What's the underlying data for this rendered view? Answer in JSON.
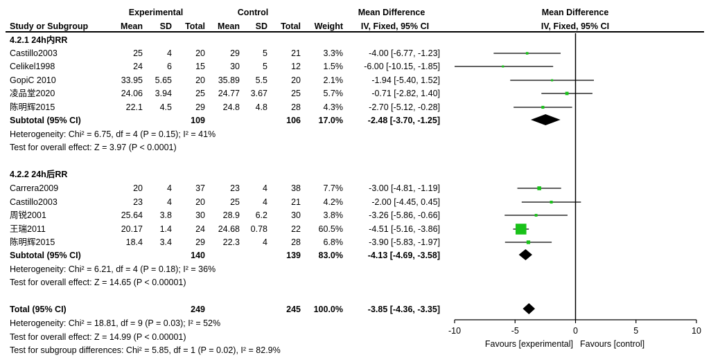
{
  "header": {
    "group_experimental": "Experimental",
    "group_control": "Control",
    "mean_difference": "Mean Difference",
    "mean_difference_plot": "Mean Difference",
    "study": "Study or Subgroup",
    "mean_e": "Mean",
    "sd_e": "SD",
    "total_e": "Total",
    "mean_c": "Mean",
    "sd_c": "SD",
    "total_c": "Total",
    "weight": "Weight",
    "ci_label": "IV, Fixed, 95% CI",
    "ci_label_plot": "IV, Fixed, 95% CI"
  },
  "chart_data": {
    "type": "forest",
    "xlim": [
      -10,
      10
    ],
    "xticks": [
      "-10",
      "-5",
      "0",
      "5",
      "10"
    ],
    "xtick_values": [
      -10,
      -5,
      0,
      5,
      10
    ],
    "favours_left": "Favours [experimental]",
    "favours_right": "Favours [control]",
    "subgroups": [
      {
        "title": "4.2.1 24h内RR",
        "studies": [
          {
            "name": "Castillo2003",
            "mean_e": "25",
            "sd_e": "4",
            "total_e": "20",
            "mean_c": "29",
            "sd_c": "5",
            "total_c": "21",
            "weight": "3.3%",
            "ci": "-4.00 [-6.77, -1.23]",
            "md": -4.0,
            "lo": -6.77,
            "hi": -1.23
          },
          {
            "name": "Celikel1998",
            "mean_e": "24",
            "sd_e": "6",
            "total_e": "15",
            "mean_c": "30",
            "sd_c": "5",
            "total_c": "12",
            "weight": "1.5%",
            "ci": "-6.00 [-10.15, -1.85]",
            "md": -6.0,
            "lo": -10.15,
            "hi": -1.85
          },
          {
            "name": "GopiC 2010",
            "mean_e": "33.95",
            "sd_e": "5.65",
            "total_e": "20",
            "mean_c": "35.89",
            "sd_c": "5.5",
            "total_c": "20",
            "weight": "2.1%",
            "ci": "-1.94 [-5.40, 1.52]",
            "md": -1.94,
            "lo": -5.4,
            "hi": 1.52
          },
          {
            "name": "凌品堂2020",
            "mean_e": "24.06",
            "sd_e": "3.94",
            "total_e": "25",
            "mean_c": "24.77",
            "sd_c": "3.67",
            "total_c": "25",
            "weight": "5.7%",
            "ci": "-0.71 [-2.82, 1.40]",
            "md": -0.71,
            "lo": -2.82,
            "hi": 1.4
          },
          {
            "name": "陈明辉2015",
            "mean_e": "22.1",
            "sd_e": "4.5",
            "total_e": "29",
            "mean_c": "24.8",
            "sd_c": "4.8",
            "total_c": "28",
            "weight": "4.3%",
            "ci": "-2.70 [-5.12, -0.28]",
            "md": -2.7,
            "lo": -5.12,
            "hi": -0.28
          }
        ],
        "subtotal": {
          "label": "Subtotal (95% CI)",
          "total_e": "109",
          "total_c": "106",
          "weight": "17.0%",
          "ci": "-2.48 [-3.70, -1.25]",
          "md": -2.48,
          "lo": -3.7,
          "hi": -1.25
        },
        "heterogeneity": "Heterogeneity: Chi² = 6.75, df = 4 (P = 0.15); I² = 41%",
        "overall": "Test for overall effect: Z = 3.97 (P < 0.0001)"
      },
      {
        "title": "4.2.2 24h后RR",
        "studies": [
          {
            "name": "Carrera2009",
            "mean_e": "20",
            "sd_e": "4",
            "total_e": "37",
            "mean_c": "23",
            "sd_c": "4",
            "total_c": "38",
            "weight": "7.7%",
            "ci": "-3.00 [-4.81, -1.19]",
            "md": -3.0,
            "lo": -4.81,
            "hi": -1.19
          },
          {
            "name": "Castillo2003",
            "mean_e": "23",
            "sd_e": "4",
            "total_e": "20",
            "mean_c": "25",
            "sd_c": "4",
            "total_c": "21",
            "weight": "4.2%",
            "ci": "-2.00 [-4.45, 0.45]",
            "md": -2.0,
            "lo": -4.45,
            "hi": 0.45
          },
          {
            "name": "周锐2001",
            "mean_e": "25.64",
            "sd_e": "3.8",
            "total_e": "30",
            "mean_c": "28.9",
            "sd_c": "6.2",
            "total_c": "30",
            "weight": "3.8%",
            "ci": "-3.26 [-5.86, -0.66]",
            "md": -3.26,
            "lo": -5.86,
            "hi": -0.66
          },
          {
            "name": "王瑞2011",
            "mean_e": "20.17",
            "sd_e": "1.4",
            "total_e": "24",
            "mean_c": "24.68",
            "sd_c": "0.78",
            "total_c": "22",
            "weight": "60.5%",
            "ci": "-4.51 [-5.16, -3.86]",
            "md": -4.51,
            "lo": -5.16,
            "hi": -3.86
          },
          {
            "name": "陈明辉2015",
            "mean_e": "18.4",
            "sd_e": "3.4",
            "total_e": "29",
            "mean_c": "22.3",
            "sd_c": "4",
            "total_c": "28",
            "weight": "6.8%",
            "ci": "-3.90 [-5.83, -1.97]",
            "md": -3.9,
            "lo": -5.83,
            "hi": -1.97
          }
        ],
        "subtotal": {
          "label": "Subtotal (95% CI)",
          "total_e": "140",
          "total_c": "139",
          "weight": "83.0%",
          "ci": "-4.13 [-4.69, -3.58]",
          "md": -4.13,
          "lo": -4.69,
          "hi": -3.58
        },
        "heterogeneity": "Heterogeneity: Chi² = 6.21, df = 4 (P = 0.18); I² = 36%",
        "overall": "Test for overall effect: Z = 14.65 (P < 0.00001)"
      }
    ],
    "total": {
      "label": "Total (95% CI)",
      "total_e": "249",
      "total_c": "245",
      "weight": "100.0%",
      "ci": "-3.85 [-4.36, -3.35]",
      "md": -3.85,
      "lo": -4.36,
      "hi": -3.35
    },
    "total_heterogeneity": "Heterogeneity: Chi² = 18.81, df = 9 (P = 0.03); I² = 52%",
    "total_overall": "Test for overall effect: Z = 14.99 (P < 0.00001)",
    "subgroup_differences": "Test for subgroup differences: Chi² = 5.85, df = 1 (P = 0.02), I² = 82.9%",
    "colors": {
      "square": "#19c219",
      "line": "#000000",
      "diamond": "#000000"
    }
  }
}
